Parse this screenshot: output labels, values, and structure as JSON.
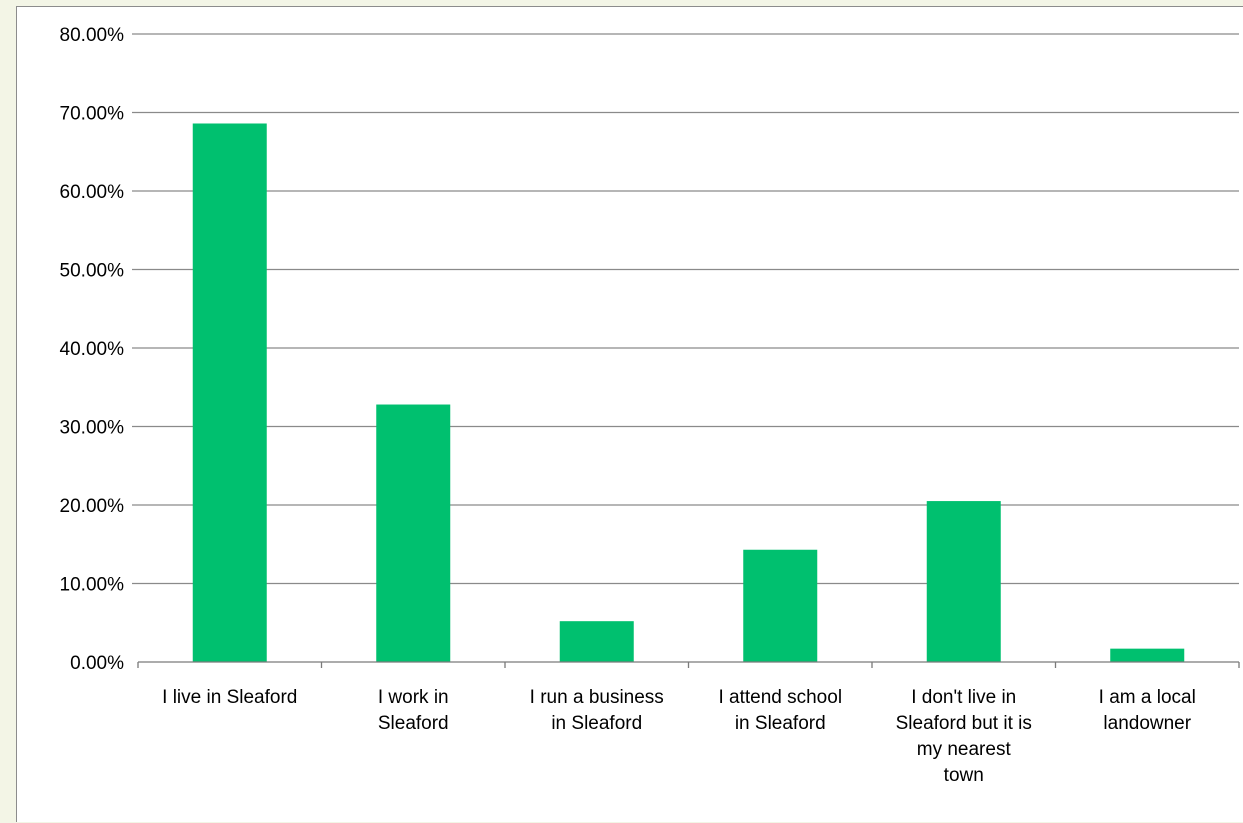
{
  "chart_data": {
    "type": "bar",
    "categories": [
      "I live in Sleaford",
      "I work in Sleaford",
      "I run a business in Sleaford",
      "I attend school in Sleaford",
      "I don't live in Sleaford but it is my nearest town",
      "I am a local landowner"
    ],
    "category_lines": [
      [
        "I live in Sleaford"
      ],
      [
        "I work in",
        "Sleaford"
      ],
      [
        "I run a business",
        "in Sleaford"
      ],
      [
        "I attend school",
        "in Sleaford"
      ],
      [
        "I don't live in",
        "Sleaford but it is",
        "my nearest",
        "town"
      ],
      [
        "I am a local",
        "landowner"
      ]
    ],
    "values": [
      68.6,
      32.8,
      5.2,
      14.3,
      20.5,
      1.7
    ],
    "ylim": [
      0,
      80
    ],
    "yticks": [
      0,
      10,
      20,
      30,
      40,
      50,
      60,
      70,
      80
    ],
    "ytick_labels": [
      "0.00%",
      "10.00%",
      "20.00%",
      "30.00%",
      "40.00%",
      "50.00%",
      "60.00%",
      "70.00%",
      "80.00%"
    ],
    "bar_color": "#00c06f",
    "grid": true,
    "legend": "none",
    "title": "",
    "xlabel": "",
    "ylabel": ""
  }
}
